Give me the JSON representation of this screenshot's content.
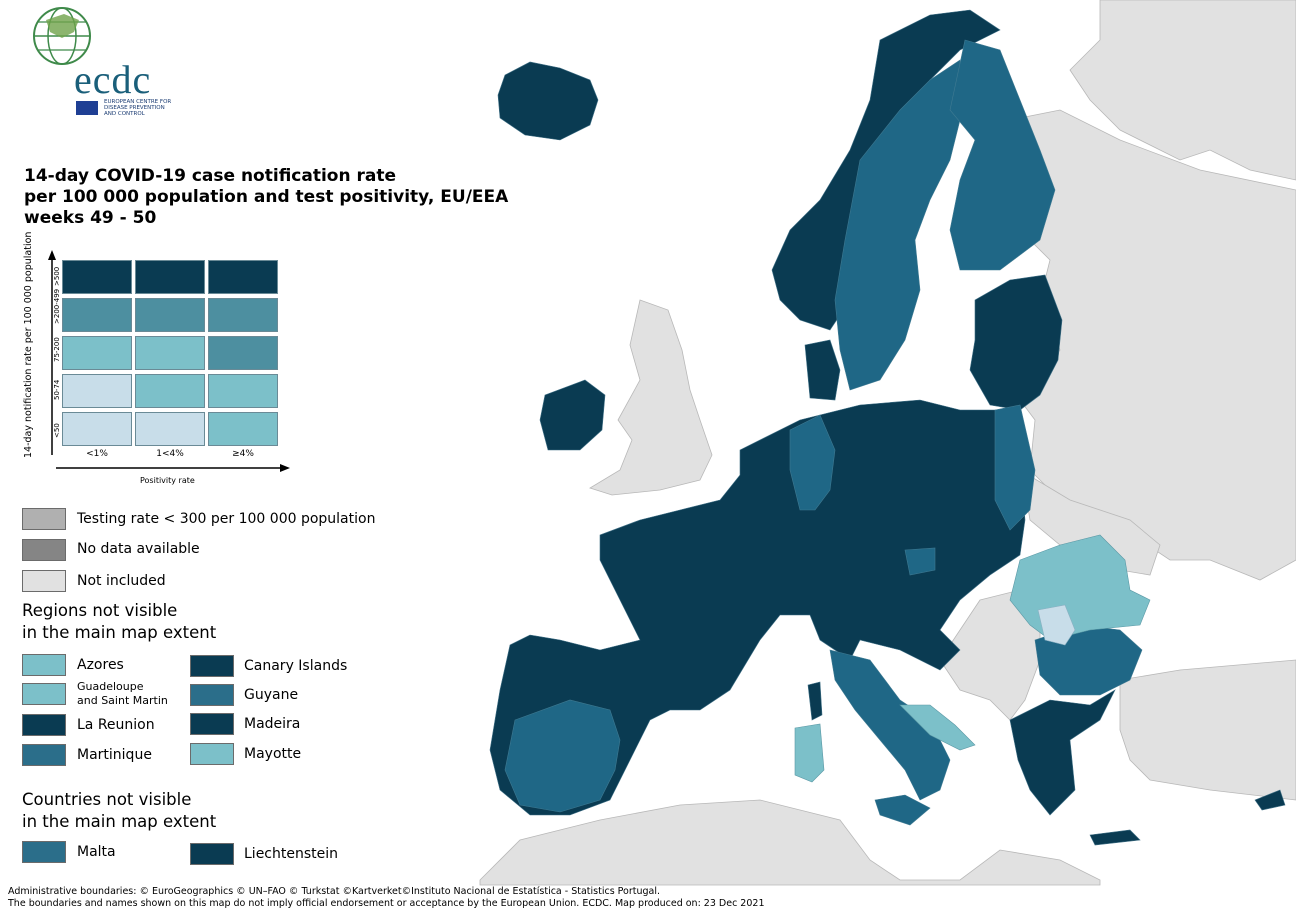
{
  "logo": {
    "text": "ecdc",
    "subtitle": "EUROPEAN CENTRE FOR DISEASE PREVENTION AND CONTROL"
  },
  "title": {
    "line1": "14-day COVID-19 case notification rate",
    "line2": "per 100 000 population and test positivity, EU/EEA",
    "line3": "weeks 49 - 50"
  },
  "matrix": {
    "y_axis_title": "14-day notification rate per 100 000 population",
    "y_labels": [
      ">500",
      ">200-499",
      "75-200",
      "50-74",
      "<50"
    ],
    "x_labels": [
      "<1%",
      "1<4%",
      "≥4%"
    ],
    "x_axis_title": "Positivity rate",
    "colors": [
      [
        "#0a3b52",
        "#0a3b52",
        "#0a3b52"
      ],
      [
        "#4d8fa0",
        "#4d8fa0",
        "#4d8fa0"
      ],
      [
        "#7cc0c9",
        "#7cc0c9",
        "#4d8fa0"
      ],
      [
        "#c8dde9",
        "#7cc0c9",
        "#7cc0c9"
      ],
      [
        "#c8dde9",
        "#c8dde9",
        "#7cc0c9"
      ]
    ]
  },
  "legend": {
    "testing_rate": {
      "label": "Testing rate < 300 per 100 000 population",
      "color": "#b0b0b0"
    },
    "no_data": {
      "label": "No data available",
      "color": "#858585"
    },
    "not_included": {
      "label": "Not included",
      "color": "#e1e1e1"
    }
  },
  "regions": {
    "heading_line1": "Regions not visible",
    "heading_line2": "in the main map extent",
    "items": [
      {
        "label": "Azores",
        "color": "#7cc0c9"
      },
      {
        "label": "Canary Islands",
        "color": "#0a3b52"
      },
      {
        "label_line1": "Guadeloupe",
        "label_line2": "and Saint Martin",
        "color": "#7cc0c9"
      },
      {
        "label": "Guyane",
        "color": "#2b6e8a"
      },
      {
        "label": "La Reunion",
        "color": "#0a3b52"
      },
      {
        "label": "Madeira",
        "color": "#0a3b52"
      },
      {
        "label": "Martinique",
        "color": "#2b6e8a"
      },
      {
        "label": "Mayotte",
        "color": "#7cc0c9"
      }
    ]
  },
  "countries": {
    "heading_line1": "Countries not visible",
    "heading_line2": "in the main map extent",
    "items": [
      {
        "label": "Malta",
        "color": "#2b6e8a"
      },
      {
        "label": "Liechtenstein",
        "color": "#0a3b52"
      }
    ]
  },
  "footer": {
    "line1": "Administrative boundaries: © EuroGeographics © UN–FAO © Turkstat ©Kartverket©Instituto Nacional de Estatística - Statistics Portugal.",
    "line2": "The boundaries and names shown on this map do not imply official endorsement or acceptance by the European Union. ECDC. Map produced on: 23 Dec 2021"
  },
  "map_colors": {
    "dark": "#0a3b52",
    "medium": "#1f6786",
    "light": "#7cc0c9",
    "very_light": "#c8dde9",
    "not_included": "#e1e1e1",
    "sea": "#ffffff"
  }
}
